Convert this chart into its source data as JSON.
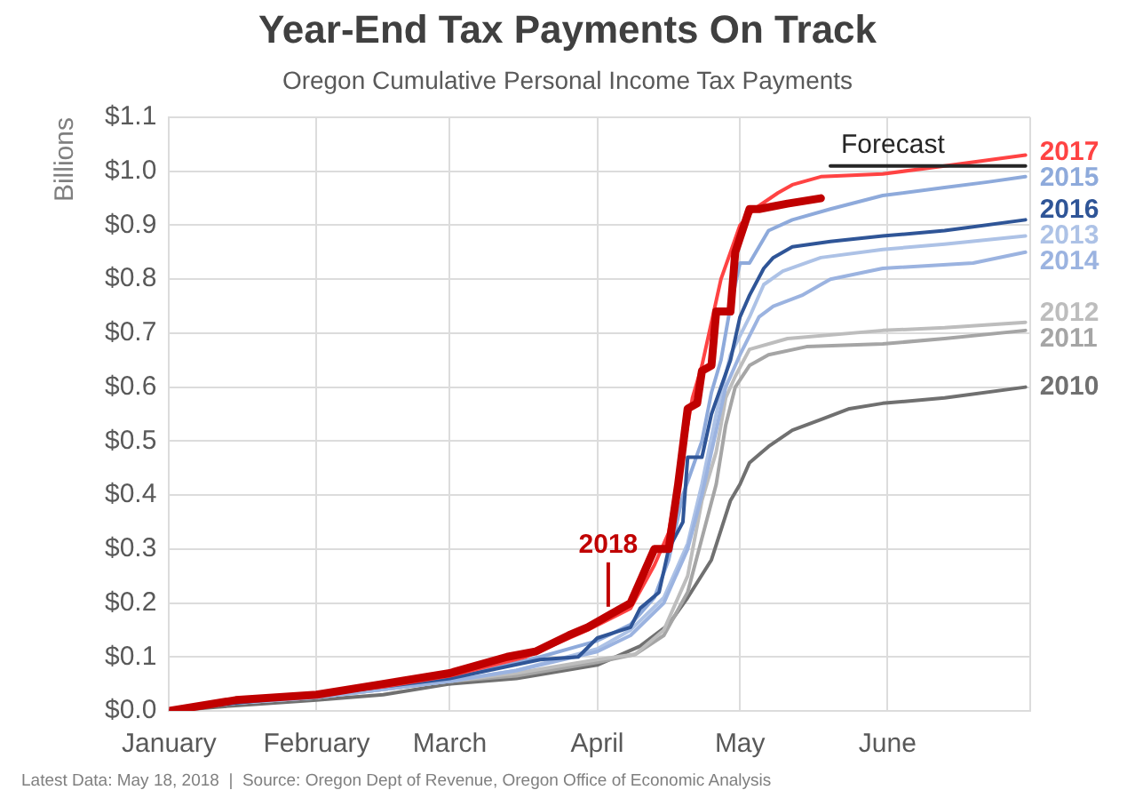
{
  "chart_data": {
    "type": "line",
    "title": "Year-End Tax Payments On Track",
    "subtitle": "Oregon Cumulative Personal Income Tax Payments",
    "ylabel": "Billions",
    "annotations": [
      "Latest Data: May 18, 2018  |  Source: Oregon Dept of Revenue, Oregon Office of Economic Analysis"
    ],
    "xlim": [
      "--01-01",
      "--07-01"
    ],
    "xticks": [
      {
        "value": "--01-01",
        "label": "January"
      },
      {
        "value": "--02-01",
        "label": "February"
      },
      {
        "value": "--03-01",
        "label": "March"
      },
      {
        "value": "--04-01",
        "label": "April"
      },
      {
        "value": "--05-01",
        "label": "May"
      },
      {
        "value": "--06-01",
        "label": "June"
      },
      {
        "value": "--07-01",
        "label": null
      }
    ],
    "ylim": [
      0,
      1.1
    ],
    "yticks": [
      {
        "value": 0,
        "label": "$0.0"
      },
      {
        "value": 0.1,
        "label": "$0.1"
      },
      {
        "value": 0.2,
        "label": "$0.2"
      },
      {
        "value": 0.3,
        "label": "$0.3"
      },
      {
        "value": 0.4,
        "label": "$0.4"
      },
      {
        "value": 0.5,
        "label": "$0.5"
      },
      {
        "value": 0.6,
        "label": "$0.6"
      },
      {
        "value": 0.7,
        "label": "$0.7"
      },
      {
        "value": 0.8,
        "label": "$0.8"
      },
      {
        "value": 0.9,
        "label": "$0.9"
      },
      {
        "value": 1.0,
        "label": "$1.0"
      },
      {
        "value": 1.1,
        "label": "$1.1"
      }
    ],
    "grid": true,
    "series": [
      {
        "name": "2010",
        "color": "#707070",
        "x": [
          "--01-01",
          "--01-15",
          "--02-01",
          "--02-15",
          "--03-01",
          "--03-15",
          "--04-01",
          "--04-10",
          "--04-16",
          "--04-20",
          "--04-25",
          "--04-29",
          "--05-01",
          "--05-03",
          "--05-07",
          "--05-12",
          "--05-18",
          "--05-24",
          "--05-31",
          "--06-13",
          "--06-30"
        ],
        "values": [
          0,
          0.01,
          0.02,
          0.03,
          0.05,
          0.06,
          0.085,
          0.12,
          0.16,
          0.21,
          0.28,
          0.39,
          0.42,
          0.46,
          0.49,
          0.52,
          0.54,
          0.56,
          0.57,
          0.58,
          0.6
        ]
      },
      {
        "name": "2011",
        "color": "#a5a5a5",
        "x": [
          "--01-01",
          "--01-15",
          "--02-01",
          "--02-15",
          "--03-01",
          "--03-15",
          "--04-01",
          "--04-09",
          "--04-15",
          "--04-20",
          "--04-23",
          "--04-26",
          "--04-28",
          "--04-30",
          "--05-03",
          "--05-07",
          "--05-15",
          "--05-31",
          "--06-13",
          "--06-30"
        ],
        "values": [
          0,
          0.015,
          0.025,
          0.04,
          0.055,
          0.065,
          0.09,
          0.105,
          0.14,
          0.22,
          0.32,
          0.42,
          0.53,
          0.6,
          0.64,
          0.66,
          0.675,
          0.68,
          0.69,
          0.705
        ]
      },
      {
        "name": "2012",
        "color": "#bdbdbd",
        "x": [
          "--01-01",
          "--01-15",
          "--02-01",
          "--02-15",
          "--03-01",
          "--03-15",
          "--04-01",
          "--04-09",
          "--04-15",
          "--04-20",
          "--04-23",
          "--04-26",
          "--04-28",
          "--04-30",
          "--05-03",
          "--05-11",
          "--05-31",
          "--06-13",
          "--06-30"
        ],
        "values": [
          0,
          0.015,
          0.025,
          0.04,
          0.055,
          0.07,
          0.095,
          0.105,
          0.15,
          0.25,
          0.39,
          0.48,
          0.58,
          0.62,
          0.67,
          0.69,
          0.705,
          0.71,
          0.72
        ]
      },
      {
        "name": "2013",
        "color": "#adc2e6",
        "x": [
          "--01-01",
          "--01-15",
          "--02-01",
          "--02-15",
          "--03-01",
          "--03-15",
          "--04-01",
          "--04-08",
          "--04-15",
          "--04-20",
          "--04-23",
          "--04-26",
          "--04-29",
          "--05-03",
          "--05-06",
          "--05-10",
          "--05-18",
          "--05-31",
          "--06-13",
          "--06-30"
        ],
        "values": [
          0,
          0.015,
          0.025,
          0.04,
          0.055,
          0.075,
          0.115,
          0.15,
          0.21,
          0.31,
          0.42,
          0.55,
          0.66,
          0.73,
          0.79,
          0.815,
          0.84,
          0.855,
          0.865,
          0.88
        ]
      },
      {
        "name": "2014",
        "color": "#9bb3e0",
        "x": [
          "--01-01",
          "--01-15",
          "--02-01",
          "--02-15",
          "--03-01",
          "--03-15",
          "--04-01",
          "--04-08",
          "--04-15",
          "--04-20",
          "--04-23",
          "--04-26",
          "--04-28",
          "--05-01",
          "--05-05",
          "--05-08",
          "--05-14",
          "--05-18",
          "--05-20",
          "--05-31",
          "--06-19",
          "--06-30"
        ],
        "values": [
          0,
          0.015,
          0.025,
          0.04,
          0.055,
          0.075,
          0.11,
          0.14,
          0.2,
          0.3,
          0.4,
          0.52,
          0.6,
          0.66,
          0.73,
          0.75,
          0.77,
          0.79,
          0.8,
          0.82,
          0.83,
          0.85
        ]
      },
      {
        "name": "2015",
        "color": "#8eaadb",
        "x": [
          "--01-01",
          "--01-15",
          "--02-01",
          "--02-15",
          "--03-01",
          "--03-20",
          "--04-01",
          "--04-08",
          "--04-13",
          "--04-16",
          "--04-19",
          "--04-21",
          "--04-23",
          "--04-25",
          "--04-27",
          "--04-29",
          "--05-01",
          "--05-03",
          "--05-07",
          "--05-12",
          "--05-20",
          "--05-31",
          "--06-13",
          "--06-22",
          "--06-30"
        ],
        "values": [
          0,
          0.015,
          0.03,
          0.045,
          0.06,
          0.1,
          0.13,
          0.16,
          0.21,
          0.28,
          0.4,
          0.45,
          0.5,
          0.59,
          0.65,
          0.75,
          0.83,
          0.83,
          0.89,
          0.91,
          0.93,
          0.955,
          0.97,
          0.98,
          0.99
        ]
      },
      {
        "name": "2016",
        "color": "#2f5597",
        "x": [
          "--01-01",
          "--01-15",
          "--02-01",
          "--02-15",
          "--03-01",
          "--03-20",
          "--03-28",
          "--04-01",
          "--04-08",
          "--04-10",
          "--04-14",
          "--04-16",
          "--04-19",
          "--04-20",
          "--04-23",
          "--04-25",
          "--04-27",
          "--04-29",
          "--05-01",
          "--05-03",
          "--05-06",
          "--05-08",
          "--05-12",
          "--05-20",
          "--05-31",
          "--06-13",
          "--06-30"
        ],
        "values": [
          0,
          0.015,
          0.03,
          0.045,
          0.06,
          0.095,
          0.1,
          0.135,
          0.155,
          0.19,
          0.22,
          0.3,
          0.35,
          0.47,
          0.47,
          0.55,
          0.6,
          0.65,
          0.73,
          0.77,
          0.82,
          0.84,
          0.86,
          0.87,
          0.88,
          0.89,
          0.91
        ]
      },
      {
        "name": "2017",
        "color": "#ff4343",
        "x": [
          "--01-01",
          "--01-15",
          "--02-01",
          "--02-15",
          "--03-01",
          "--03-17",
          "--03-30",
          "--04-08",
          "--04-13",
          "--04-16",
          "--04-19",
          "--04-21",
          "--04-23",
          "--04-25",
          "--04-27",
          "--04-29",
          "--05-01",
          "--05-04",
          "--05-09",
          "--05-12",
          "--05-18",
          "--05-31",
          "--06-13",
          "--06-30"
        ],
        "values": [
          0,
          0.02,
          0.03,
          0.045,
          0.065,
          0.1,
          0.15,
          0.19,
          0.27,
          0.33,
          0.48,
          0.58,
          0.64,
          0.72,
          0.8,
          0.85,
          0.9,
          0.93,
          0.96,
          0.975,
          0.99,
          0.995,
          1.01,
          1.03
        ]
      },
      {
        "name": "2018",
        "color": "#c00000",
        "x": [
          "--01-01",
          "--01-15",
          "--02-01",
          "--02-15",
          "--03-01",
          "--03-13",
          "--03-19",
          "--03-26",
          "--03-30",
          "--04-04",
          "--04-08",
          "--04-10",
          "--04-13",
          "--04-16",
          "--04-18",
          "--04-20",
          "--04-22",
          "--04-23",
          "--04-25",
          "--04-26",
          "--04-29",
          "--04-30",
          "--05-03",
          "--05-05",
          "--05-11",
          "--05-18"
        ],
        "values": [
          0,
          0.02,
          0.03,
          0.05,
          0.07,
          0.1,
          0.11,
          0.14,
          0.155,
          0.18,
          0.2,
          0.24,
          0.3,
          0.3,
          0.42,
          0.56,
          0.57,
          0.63,
          0.64,
          0.74,
          0.74,
          0.85,
          0.93,
          0.93,
          0.94,
          0.95
        ]
      },
      {
        "name": "Forecast",
        "color": "#262626",
        "x": [
          "--05-20",
          "--06-30"
        ],
        "values": [
          1.01,
          1.01
        ]
      }
    ]
  }
}
